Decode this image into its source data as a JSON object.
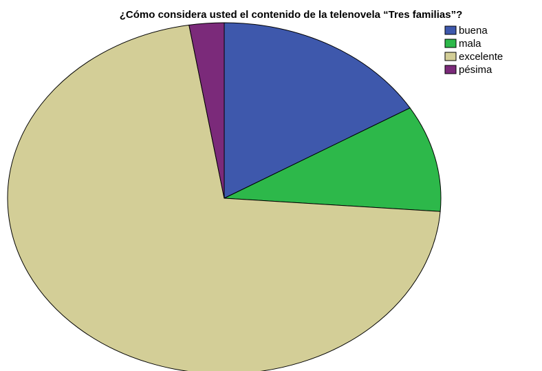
{
  "chart_data": {
    "type": "pie",
    "title": "¿Cómo considera usted el contenido de la telenovela “Tres familias”?",
    "categories": [
      "buena",
      "mala",
      "excelente",
      "pésima"
    ],
    "values": [
      16.4,
      9.8,
      71.2,
      2.6
    ],
    "colors": [
      "#3e58ac",
      "#2db84a",
      "#d3ce97",
      "#7b2a7a"
    ],
    "legend": "top-right"
  }
}
